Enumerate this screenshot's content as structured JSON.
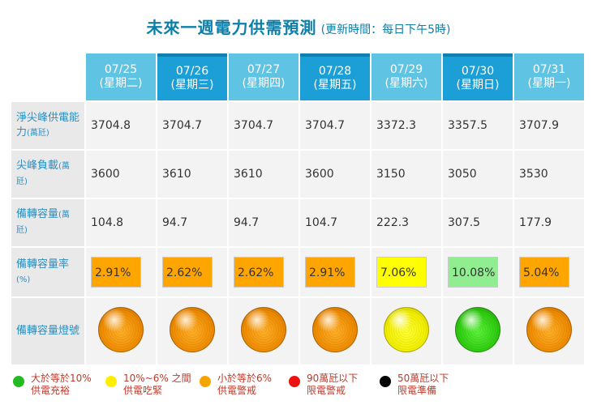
{
  "title": {
    "main": "未來一週電力供需預測",
    "sub": "(更新時間：每日下午5時)"
  },
  "dates": [
    {
      "date": "07/25",
      "weekday": "(星期二)",
      "shade": "light"
    },
    {
      "date": "07/26",
      "weekday": "(星期三)",
      "shade": "dark"
    },
    {
      "date": "07/27",
      "weekday": "(星期四)",
      "shade": "light"
    },
    {
      "date": "07/28",
      "weekday": "(星期五)",
      "shade": "dark"
    },
    {
      "date": "07/29",
      "weekday": "(星期六)",
      "shade": "light"
    },
    {
      "date": "07/30",
      "weekday": "(星期日)",
      "shade": "dark"
    },
    {
      "date": "07/31",
      "weekday": "(星期一)",
      "shade": "light"
    }
  ],
  "rows": {
    "capacity": {
      "label": "淨尖峰供電能力",
      "unit": "(萬瓩)",
      "values": [
        "3704.8",
        "3704.7",
        "3704.7",
        "3704.7",
        "3372.3",
        "3357.5",
        "3707.9"
      ]
    },
    "peak_load": {
      "label": "尖峰負載",
      "unit": "(萬瓩)",
      "values": [
        "3600",
        "3610",
        "3610",
        "3600",
        "3150",
        "3050",
        "3530"
      ]
    },
    "reserve": {
      "label": "備轉容量",
      "unit": "(萬瓩)",
      "values": [
        "104.8",
        "94.7",
        "94.7",
        "104.7",
        "222.3",
        "307.5",
        "177.9"
      ]
    },
    "reserve_rate": {
      "label": "備轉容量率",
      "unit": "(%)",
      "values": [
        "2.91%",
        "2.62%",
        "2.62%",
        "2.91%",
        "7.06%",
        "10.08%",
        "5.04%"
      ],
      "colors": [
        "#ffa500",
        "#ffa500",
        "#ffa500",
        "#ffa500",
        "#ffff00",
        "#90ee90",
        "#ffa500"
      ]
    },
    "lamp": {
      "label": "備轉容量燈號",
      "states": [
        "orange",
        "orange",
        "orange",
        "orange",
        "yellow",
        "green",
        "orange"
      ]
    }
  },
  "legend": [
    {
      "color": "#22bb22",
      "line1": "大於等於10%",
      "line2": "供電充裕"
    },
    {
      "color": "#ffee00",
      "line1": "10%~6% 之間",
      "line2": "供電吃緊"
    },
    {
      "color": "#f5a500",
      "line1": "小於等於6%",
      "line2": "供電警戒"
    },
    {
      "color": "#ee1111",
      "line1": "90萬瓩以下",
      "line2": "限電警戒"
    },
    {
      "color": "#000000",
      "line1": "50萬瓩以下",
      "line2": "限電準備"
    }
  ]
}
